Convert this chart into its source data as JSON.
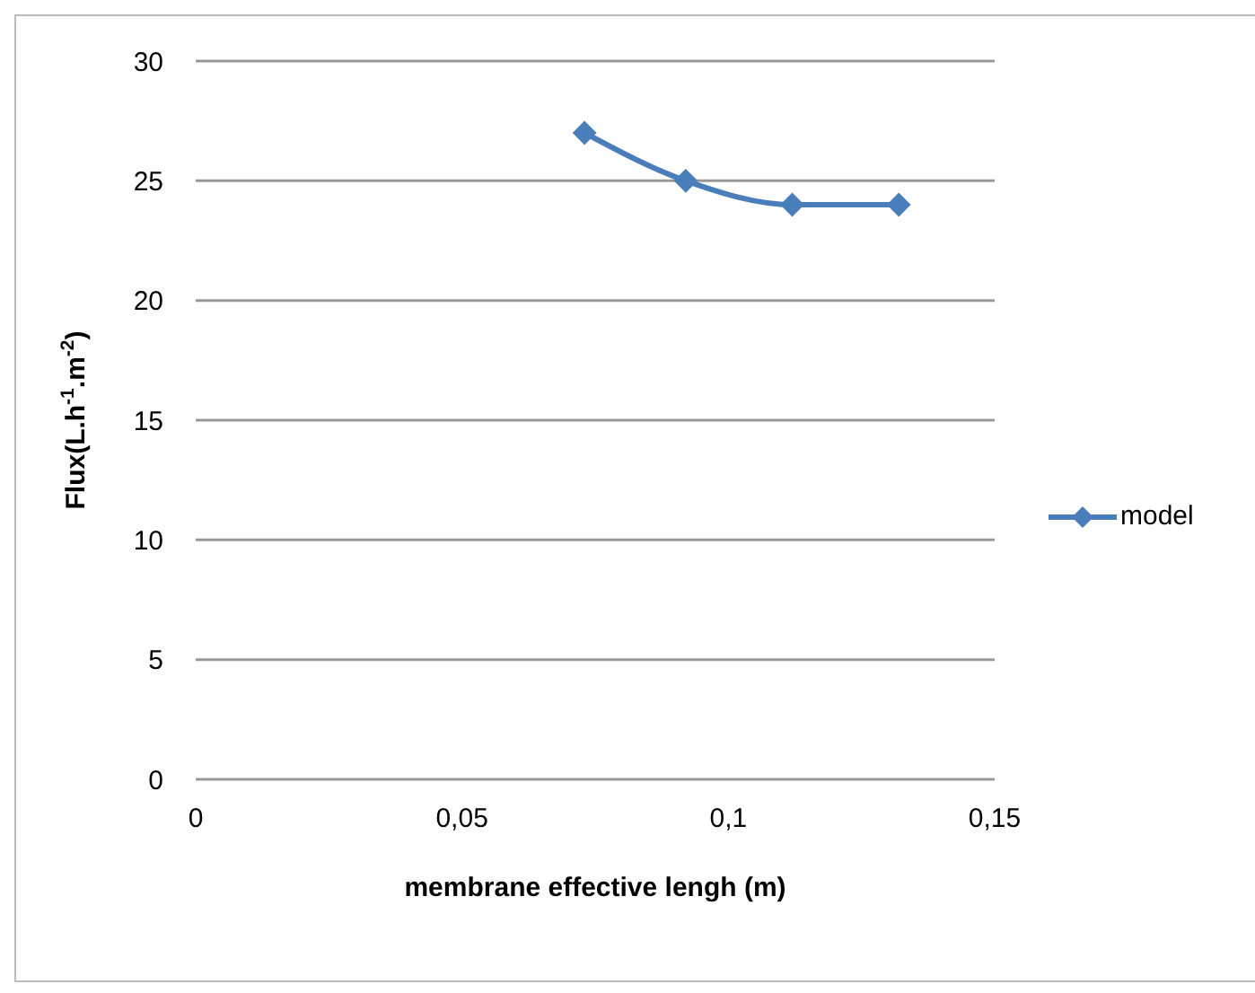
{
  "chart_data": {
    "type": "line",
    "xlabel": "membrane effective lengh  (m)",
    "ylabel": "Flux(L.h$^{-1}$.m$^{-2}$)",
    "x": [
      0.073,
      0.092,
      0.112,
      0.132
    ],
    "series": [
      {
        "name": "model",
        "color": "#4a7ebb",
        "values": [
          27,
          25,
          24,
          24
        ]
      }
    ],
    "xlim": [
      0,
      0.15
    ],
    "xticks": [
      0,
      {
        "value": 0.05,
        "label": "0,05"
      },
      {
        "value": 0.1,
        "label": "0,1"
      },
      {
        "value": 0.15,
        "label": "0,15"
      }
    ],
    "ylim": [
      0,
      30
    ],
    "yticks": [
      0,
      5,
      10,
      15,
      20,
      25,
      30
    ],
    "grid": "y",
    "legend": "right",
    "marker": "diamond",
    "line_style": "solid"
  }
}
